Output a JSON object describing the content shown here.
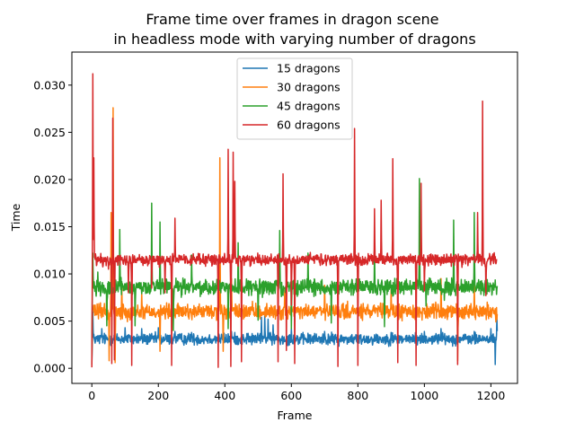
{
  "chart_data": {
    "type": "line",
    "title": "Frame time over frames in dragon scene\nin headless mode with varying number of dragons",
    "xlabel": "Frame",
    "ylabel": "Time",
    "xlim": [
      -60,
      1280
    ],
    "ylim": [
      -0.0016,
      0.0335
    ],
    "xticks": [
      0,
      200,
      400,
      600,
      800,
      1000,
      1200
    ],
    "xtick_labels": [
      "0",
      "200",
      "400",
      "600",
      "800",
      "1000",
      "1200"
    ],
    "yticks": [
      0.0,
      0.005,
      0.01,
      0.015,
      0.02,
      0.025,
      0.03
    ],
    "ytick_labels": [
      "0.000",
      "0.005",
      "0.010",
      "0.015",
      "0.020",
      "0.025",
      "0.030"
    ],
    "grid": false,
    "legend_position": "upper center",
    "n_frames": 1220,
    "series": [
      {
        "name": "15 dragons",
        "color": "#1f77b4",
        "base": 0.0031,
        "noise": 0.0003,
        "spikes": [
          [
            0,
            0.0004
          ],
          [
            3,
            0.006
          ],
          [
            30,
            0.0042
          ],
          [
            100,
            0.0043
          ],
          [
            150,
            0.0042
          ],
          [
            200,
            0.0043
          ],
          [
            250,
            0.0039
          ],
          [
            300,
            0.0038
          ],
          [
            420,
            0.0039
          ],
          [
            470,
            0.0037
          ],
          [
            510,
            0.0054
          ],
          [
            520,
            0.0056
          ],
          [
            530,
            0.0052
          ],
          [
            545,
            0.0046
          ],
          [
            600,
            0.0042
          ],
          [
            700,
            0.0039
          ],
          [
            900,
            0.0038
          ],
          [
            1000,
            0.0039
          ],
          [
            1050,
            0.0042
          ],
          [
            1150,
            0.0039
          ],
          [
            1200,
            0.0042
          ],
          [
            1213,
            0.0004
          ],
          [
            1218,
            0.0055
          ]
        ]
      },
      {
        "name": "30 dragons",
        "color": "#ff7f0e",
        "base": 0.006,
        "noise": 0.0004,
        "spikes": [
          [
            0,
            0.0004
          ],
          [
            45,
            0.0081
          ],
          [
            52,
            0.0008
          ],
          [
            58,
            0.0165
          ],
          [
            64,
            0.0276
          ],
          [
            70,
            0.0006
          ],
          [
            90,
            0.0088
          ],
          [
            150,
            0.008
          ],
          [
            205,
            0.0018
          ],
          [
            385,
            0.0223
          ],
          [
            395,
            0.0018
          ],
          [
            420,
            0.0095
          ],
          [
            580,
            0.0083
          ],
          [
            700,
            0.0088
          ],
          [
            900,
            0.0083
          ],
          [
            1050,
            0.0095
          ],
          [
            1100,
            0.0008
          ],
          [
            1150,
            0.0088
          ],
          [
            1210,
            0.0061
          ]
        ]
      },
      {
        "name": "45 dragons",
        "color": "#2ca02c",
        "base": 0.0086,
        "noise": 0.0004,
        "spikes": [
          [
            0,
            0.0006
          ],
          [
            3,
            0.0122
          ],
          [
            18,
            0.0102
          ],
          [
            45,
            0.0045
          ],
          [
            84,
            0.0147
          ],
          [
            130,
            0.0045
          ],
          [
            180,
            0.0175
          ],
          [
            205,
            0.0155
          ],
          [
            245,
            0.004
          ],
          [
            300,
            0.012
          ],
          [
            410,
            0.0042
          ],
          [
            440,
            0.0133
          ],
          [
            500,
            0.0051
          ],
          [
            565,
            0.0146
          ],
          [
            600,
            0.0042
          ],
          [
            650,
            0.0122
          ],
          [
            720,
            0.0048
          ],
          [
            850,
            0.0126
          ],
          [
            880,
            0.0044
          ],
          [
            985,
            0.0201
          ],
          [
            1005,
            0.0066
          ],
          [
            1060,
            0.0072
          ],
          [
            1088,
            0.0157
          ],
          [
            1150,
            0.0165
          ],
          [
            1215,
            0.0086
          ]
        ]
      },
      {
        "name": "60 dragons",
        "color": "#d62728",
        "base": 0.0115,
        "noise": 0.0003,
        "spikes": [
          [
            0,
            0.0001
          ],
          [
            3,
            0.0312
          ],
          [
            6,
            0.0223
          ],
          [
            50,
            0.0105
          ],
          [
            60,
            0.0005
          ],
          [
            63,
            0.0265
          ],
          [
            68,
            0.0009
          ],
          [
            110,
            0.008
          ],
          [
            120,
            0.0003
          ],
          [
            180,
            0.0085
          ],
          [
            220,
            0.008
          ],
          [
            240,
            0.0003
          ],
          [
            250,
            0.0159
          ],
          [
            380,
            0.0001
          ],
          [
            410,
            0.0232
          ],
          [
            418,
            0.0002
          ],
          [
            425,
            0.0229
          ],
          [
            430,
            0.0198
          ],
          [
            450,
            0.0007
          ],
          [
            560,
            0.0007
          ],
          [
            575,
            0.0206
          ],
          [
            585,
            0.0019
          ],
          [
            600,
            0.0067
          ],
          [
            610,
            0.0005
          ],
          [
            740,
            0.0002
          ],
          [
            790,
            0.0254
          ],
          [
            800,
            0.0003
          ],
          [
            850,
            0.0169
          ],
          [
            870,
            0.0178
          ],
          [
            905,
            0.0222
          ],
          [
            920,
            0.0006
          ],
          [
            975,
            0.0003
          ],
          [
            990,
            0.0196
          ],
          [
            1000,
            0.0082
          ],
          [
            1100,
            0.0004
          ],
          [
            1160,
            0.0165
          ],
          [
            1175,
            0.0283
          ],
          [
            1185,
            0.0077
          ],
          [
            1218,
            0.0115
          ]
        ]
      }
    ]
  }
}
